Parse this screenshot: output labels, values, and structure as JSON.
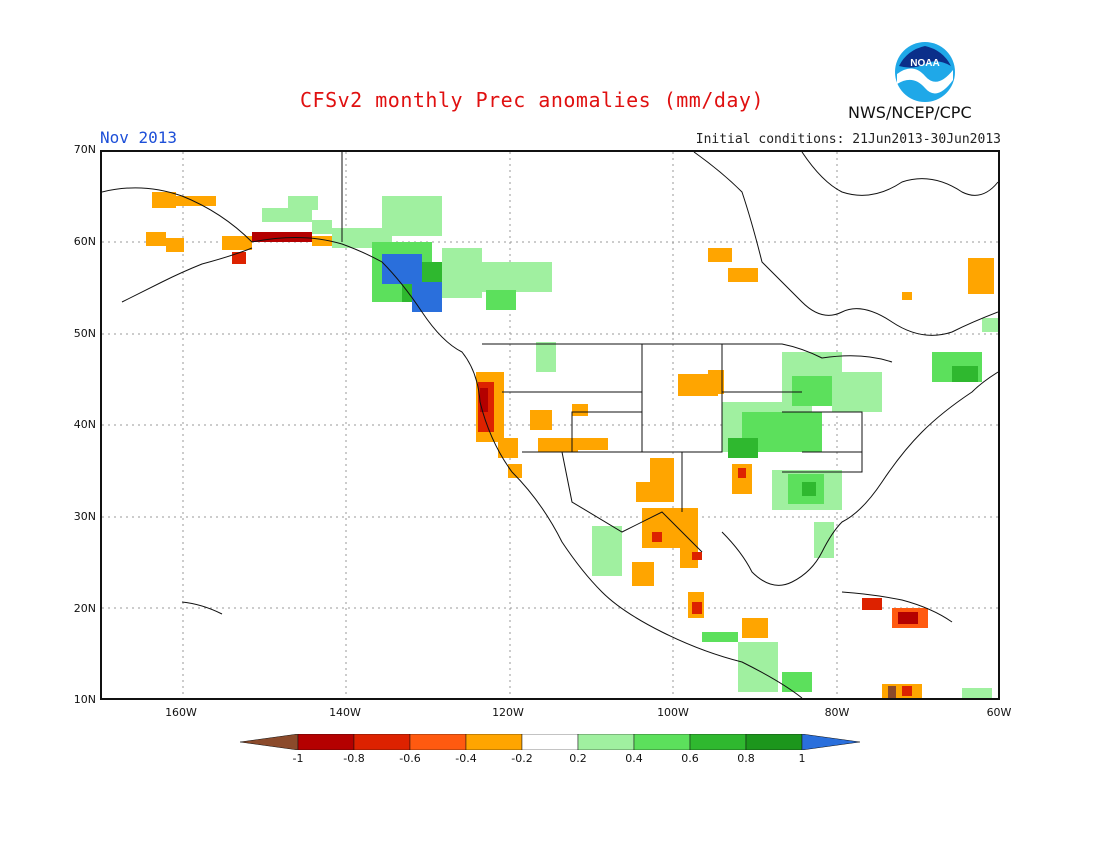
{
  "title": "CFSv2 monthly Prec anomalies (mm/day)",
  "month": "Nov 2013",
  "initial_conditions": "Initial conditions: 21Jun2013-30Jun2013",
  "agency": "NWS/NCEP/CPC",
  "logo_text": "NOAA",
  "lat_labels": [
    "70N",
    "60N",
    "50N",
    "40N",
    "30N",
    "20N",
    "10N"
  ],
  "lon_labels": [
    "160W",
    "140W",
    "120W",
    "100W",
    "80W",
    "60W"
  ],
  "colorbar": {
    "labels": [
      "-1",
      "-0.8",
      "-0.6",
      "-0.4",
      "-0.2",
      "0.2",
      "0.4",
      "0.6",
      "0.8",
      "1"
    ],
    "colors": {
      "below_min": "#8b4a2b",
      "bins": [
        "#b40000",
        "#dd2200",
        "#ff5a10",
        "#ffa500",
        "#ffffff",
        "#a0f0a0",
        "#5ce05c",
        "#2fb82f",
        "#1c961c"
      ],
      "above_max": "#2a6fdc"
    }
  }
}
